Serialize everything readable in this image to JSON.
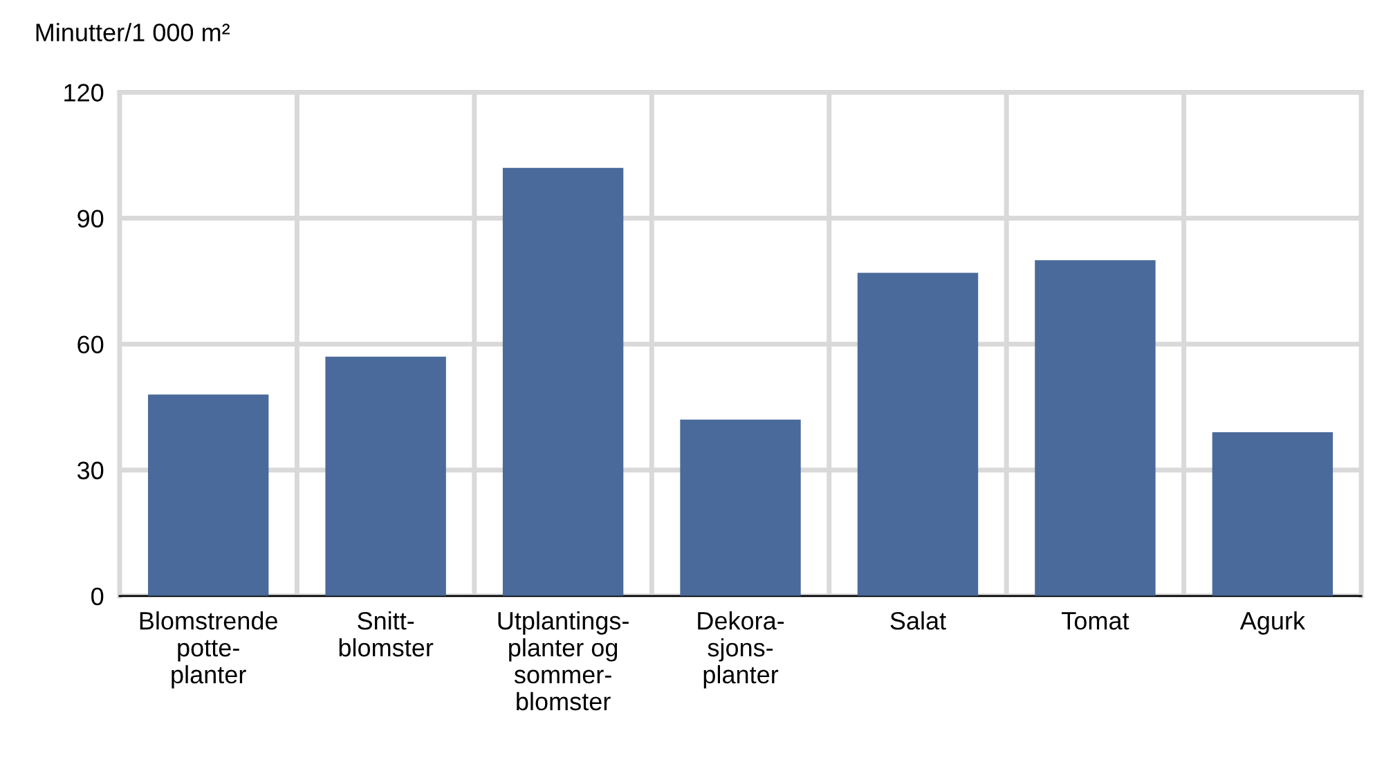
{
  "chart_data": {
    "type": "bar",
    "ylabel": "Minutter/1 000 m²",
    "categories": [
      "Blomstrende\npotte-\nplanter",
      "Snitt-\nblomster",
      "Utplantings-\nplanter og\nsommer-\nblomster",
      "Dekora-\nsjons-\nplanter",
      "Salat",
      "Tomat",
      "Agurk"
    ],
    "values": [
      48,
      57,
      102,
      42,
      77,
      80,
      39
    ],
    "color": "#4a6a9b",
    "ylim": [
      0,
      120
    ],
    "yticks": [
      0,
      30,
      60,
      90,
      120
    ],
    "grid": true
  }
}
